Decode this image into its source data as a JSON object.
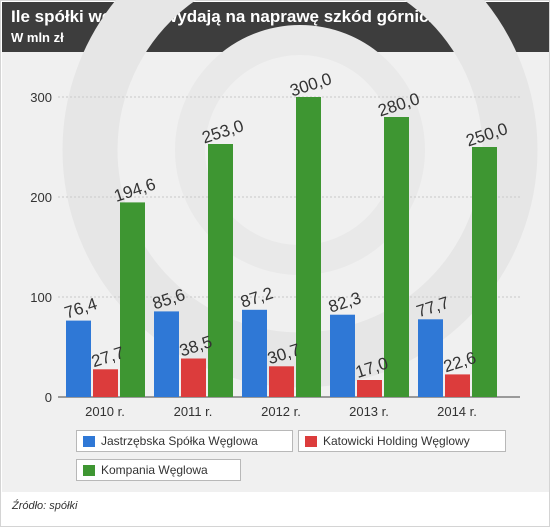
{
  "header": {
    "title": "Ile spółki węglowe wydają na naprawę szkód górniczych?",
    "subtitle": "W mln zł"
  },
  "source": "Źródło: spółki",
  "chart_data": {
    "type": "bar",
    "categories": [
      "2010 r.",
      "2011 r.",
      "2012 r.",
      "2013 r.",
      "2014 r."
    ],
    "series": [
      {
        "name": "Jastrzębska Spółka Węglowa",
        "color": "#2f78d6",
        "values": [
          76.4,
          85.6,
          87.2,
          82.3,
          77.7
        ],
        "labels": [
          "76,4",
          "85,6",
          "87,2",
          "82,3",
          "77,7"
        ]
      },
      {
        "name": "Katowicki Holding Węglowy",
        "color": "#dc3c3c",
        "values": [
          27.7,
          38.5,
          30.7,
          17.0,
          22.6
        ],
        "labels": [
          "27,7",
          "38,5",
          "30,7",
          "17,0",
          "22,6"
        ]
      },
      {
        "name": "Kompania Węglowa",
        "color": "#3e9632",
        "values": [
          194.6,
          253.0,
          300.0,
          280.0,
          250.0
        ],
        "labels": [
          "194,6",
          "253,0",
          "300,0",
          "280,0",
          "250,0"
        ]
      }
    ],
    "yticks": [
      "0",
      "100",
      "200",
      "300"
    ],
    "ylim": [
      0,
      330
    ],
    "grid": true,
    "legend": "bottom"
  }
}
